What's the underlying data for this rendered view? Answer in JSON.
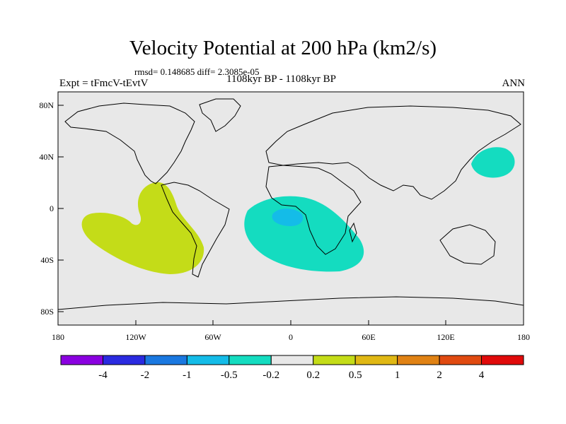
{
  "title": "Velocity Potential at 200 hPa (km2/s)",
  "stats": "rmsd= 0.148685 diff= 2.3085e-05",
  "experiment": "Expt = tFmcV-tEvtV",
  "period": "1108kyr BP - 1108kyr BP",
  "season": "ANN",
  "lat_ticks": [
    "80N",
    "40N",
    "0",
    "40S",
    "80S"
  ],
  "lon_ticks": [
    "180",
    "120W",
    "60W",
    "0",
    "60E",
    "120E",
    "180"
  ],
  "colorbar": {
    "colors": [
      "#8a00e0",
      "#2a2ae0",
      "#1a78e0",
      "#14bce8",
      "#14dcc0",
      "#e8e8e8",
      "#c4dc18",
      "#e0b814",
      "#e08214",
      "#e04a10",
      "#e00a0a"
    ],
    "labels": [
      "-4",
      "-2",
      "-1",
      "-0.5",
      "-0.2",
      "0.2",
      "0.5",
      "1",
      "2",
      "4"
    ]
  },
  "colors": {
    "land_ocean": "#e8e8e8",
    "positive_anomaly": "#c4dc18",
    "negative_anomaly": "#14dcc0",
    "strong_negative": "#14bce8"
  }
}
